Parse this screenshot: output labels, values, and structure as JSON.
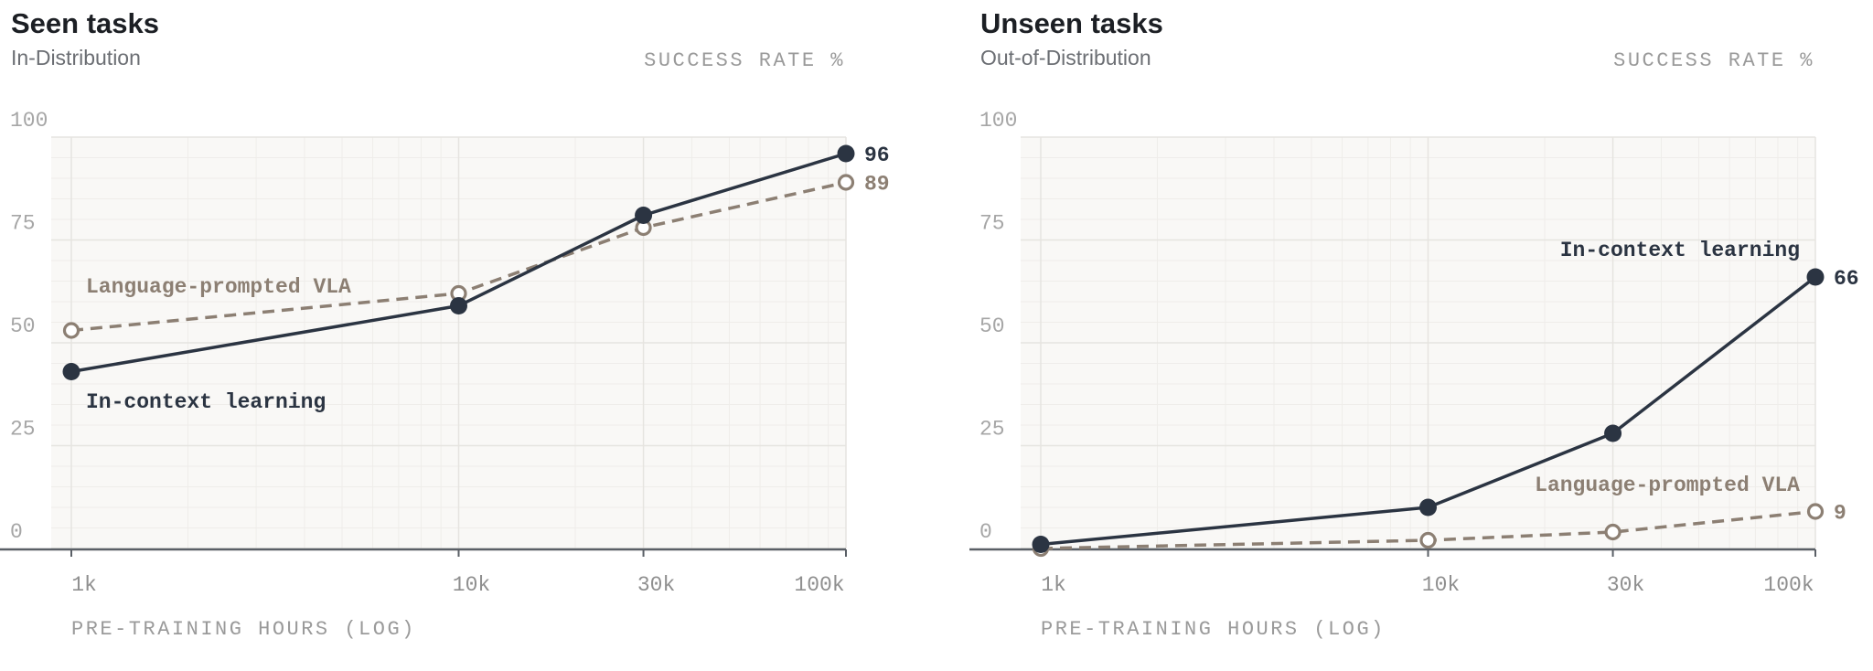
{
  "colors": {
    "icl": "#2b3442",
    "vla": "#8c7f73",
    "plot_bg": "#f9f8f6",
    "grid_major": "#e6e4e0",
    "grid_minor": "#efedea",
    "axis": "#5a5f66"
  },
  "chart_data": [
    {
      "type": "line",
      "title": "Seen tasks",
      "subtitle": "In-Distribution",
      "ylabel": "SUCCESS RATE %",
      "xlabel": "PRE-TRAINING HOURS (LOG)",
      "x_scale": "log",
      "x": [
        1000,
        10000,
        30000,
        100000
      ],
      "x_tick_labels": [
        "1k",
        "10k",
        "30k",
        "100k"
      ],
      "ylim": [
        0,
        100
      ],
      "y_ticks": [
        0,
        25,
        50,
        75,
        100
      ],
      "y_tick_labels": [
        "0",
        "25",
        "50",
        "75",
        "100"
      ],
      "grid": true,
      "series": [
        {
          "name": "In-context learning",
          "values": [
            43,
            59,
            81,
            96
          ],
          "end_label": "96",
          "style": "solid"
        },
        {
          "name": "Language-prompted VLA",
          "values": [
            53,
            62,
            78,
            89
          ],
          "end_label": "89",
          "style": "dashed"
        }
      ]
    },
    {
      "type": "line",
      "title": "Unseen tasks",
      "subtitle": "Out-of-Distribution",
      "ylabel": "SUCCESS RATE %",
      "xlabel": "PRE-TRAINING HOURS (LOG)",
      "x_scale": "log",
      "x": [
        1000,
        10000,
        30000,
        100000
      ],
      "x_tick_labels": [
        "1k",
        "10k",
        "30k",
        "100k"
      ],
      "ylim": [
        0,
        100
      ],
      "y_ticks": [
        0,
        25,
        50,
        75,
        100
      ],
      "y_tick_labels": [
        "0",
        "25",
        "50",
        "75",
        "100"
      ],
      "grid": true,
      "series": [
        {
          "name": "In-context learning",
          "values": [
            1,
            10,
            28,
            66
          ],
          "end_label": "66",
          "style": "solid"
        },
        {
          "name": "Language-prompted VLA",
          "values": [
            0,
            2,
            4,
            9
          ],
          "end_label": "9",
          "style": "dashed"
        }
      ]
    }
  ]
}
